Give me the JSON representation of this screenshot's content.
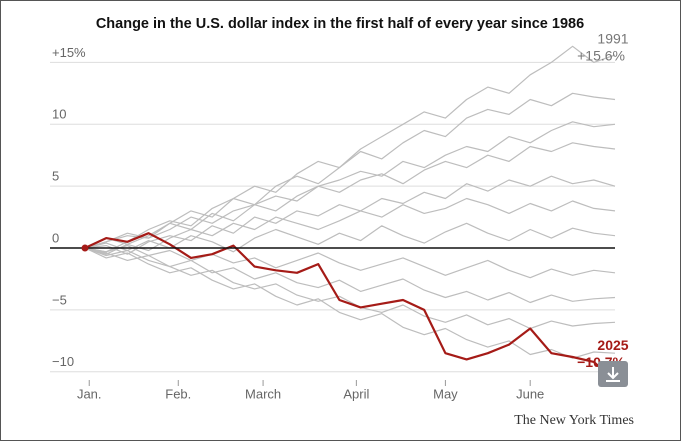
{
  "chart_data": {
    "type": "line",
    "title": "Change in the U.S. dollar index in the first half of every year since 1986",
    "source": "The New York Times",
    "x": [
      0,
      1,
      2,
      3,
      4,
      5,
      6,
      7,
      8,
      9,
      10,
      11,
      12,
      13,
      14,
      15,
      16,
      17,
      18,
      19,
      20,
      21,
      22,
      23,
      24,
      25
    ],
    "xlim": [
      0,
      25
    ],
    "xticks": [
      {
        "value": 0.2,
        "label": "Jan."
      },
      {
        "value": 4.4,
        "label": "Feb."
      },
      {
        "value": 8.4,
        "label": "March"
      },
      {
        "value": 12.8,
        "label": "April"
      },
      {
        "value": 17,
        "label": "May"
      },
      {
        "value": 21,
        "label": "June"
      }
    ],
    "ylim": [
      -10.5,
      16
    ],
    "yticks": [
      {
        "value": 15,
        "label": "+15%"
      },
      10,
      5,
      0,
      {
        "value": -5,
        "label": "−5"
      },
      {
        "value": -10,
        "label": "−10"
      }
    ],
    "grid": true,
    "series": [
      {
        "color": "#bdbdbd",
        "values": [
          0,
          0.5,
          1.2,
          0.8,
          1.5,
          2.5,
          2,
          3,
          3.5,
          4.2,
          3.8,
          5,
          5.5,
          6.2,
          5.8,
          7,
          6.5,
          7.5,
          8.2,
          7.8,
          9,
          8.5,
          9.5,
          10.2,
          9.8,
          10
        ]
      },
      {
        "color": "#bdbdbd",
        "values": [
          0,
          -0.3,
          0.5,
          1.5,
          2.2,
          1.8,
          3.2,
          4,
          3.5,
          5,
          5.8,
          5.2,
          6.5,
          7.8,
          7.2,
          8.5,
          9.5,
          9,
          10.5,
          11.2,
          10.8,
          12,
          11.5,
          12.5,
          12.2,
          12
        ]
      },
      {
        "color": "#bdbdbd",
        "values": [
          0,
          0.8,
          0.3,
          1,
          2,
          1.5,
          2.8,
          2.2,
          3.5,
          3,
          4.2,
          5,
          4.5,
          5.5,
          6,
          5.2,
          6.3,
          7,
          6.5,
          7.5,
          7,
          8.2,
          7.8,
          8.5,
          8.2,
          8
        ]
      },
      {
        "color": "#bdbdbd",
        "values": [
          0,
          0.2,
          -0.5,
          0.5,
          1,
          0.6,
          1.8,
          1.2,
          2.5,
          2,
          3,
          2.6,
          3.5,
          3,
          4,
          3.6,
          4.5,
          4,
          5.2,
          4.6,
          5.5,
          5,
          5.8,
          5.2,
          5.5,
          5
        ]
      },
      {
        "color": "#bdbdbd",
        "values": [
          0,
          -0.5,
          0.3,
          -0.2,
          0.8,
          1.5,
          1,
          2,
          1.5,
          2.5,
          2,
          1.5,
          2.2,
          3,
          2.5,
          3.5,
          2.8,
          3.2,
          4,
          3.5,
          2.8,
          3.6,
          3,
          3.8,
          3.2,
          3
        ]
      },
      {
        "color": "#bdbdbd",
        "values": [
          0,
          0.4,
          -0.2,
          0.6,
          0,
          1,
          0.5,
          -0.3,
          0.8,
          1.5,
          0.9,
          0.3,
          1.2,
          0.6,
          1.8,
          1,
          0.4,
          1.3,
          2,
          1.2,
          0.6,
          1.5,
          0.8,
          1.6,
          1.2,
          1
        ]
      },
      {
        "color": "#bdbdbd",
        "values": [
          0,
          -0.3,
          0.2,
          -0.6,
          -0.2,
          -1,
          -0.5,
          -1.2,
          -0.8,
          -1.6,
          -1,
          -0.4,
          -1.2,
          -1.8,
          -1.3,
          -0.8,
          -1.5,
          -2.2,
          -1.6,
          -1,
          -1.8,
          -2.4,
          -1.7,
          -2.2,
          -1.8,
          -2
        ]
      },
      {
        "color": "#bdbdbd",
        "values": [
          0,
          -0.6,
          -0.2,
          -1,
          -1.5,
          -1,
          -2,
          -1.6,
          -2.5,
          -2,
          -2.8,
          -3.2,
          -2.6,
          -3.5,
          -3,
          -2.5,
          -3.4,
          -4,
          -3.5,
          -4.2,
          -3.6,
          -4.4,
          -3.8,
          -4.3,
          -4.1,
          -4
        ]
      },
      {
        "color": "#bdbdbd",
        "values": [
          0,
          -0.4,
          -1,
          -0.6,
          -1.5,
          -2.2,
          -1.8,
          -2.8,
          -3.3,
          -2.9,
          -3.8,
          -4.3,
          -3.9,
          -4.8,
          -5.2,
          -4.6,
          -5.5,
          -6,
          -5.4,
          -6.2,
          -5.7,
          -6.5,
          -5.9,
          -6.3,
          -6.1,
          -6
        ]
      },
      {
        "color": "#bdbdbd",
        "values": [
          0,
          -0.8,
          -0.4,
          -1.3,
          -2,
          -1.6,
          -2.6,
          -3.3,
          -2.9,
          -3.9,
          -4.6,
          -4.1,
          -5.2,
          -5.8,
          -5.3,
          -6.4,
          -7,
          -6.5,
          -7.4,
          -8,
          -7.5,
          -8.6,
          -8.2,
          -8.9,
          -8.4,
          -8.5
        ]
      },
      {
        "name": "1991",
        "color": "#bdbdbd",
        "values": [
          0,
          0.5,
          1,
          0.8,
          2,
          3,
          2.5,
          4,
          5,
          4.5,
          6,
          7,
          6.5,
          8,
          9,
          10,
          11,
          10.5,
          12,
          13,
          12.5,
          14,
          15,
          16.3,
          15,
          15.6
        ],
        "value_labels": [
          null,
          null,
          null,
          null,
          null,
          null,
          null,
          null,
          null,
          null,
          null,
          null,
          null,
          null,
          null,
          null,
          null,
          null,
          null,
          null,
          null,
          null,
          null,
          null,
          null,
          "+15.6%"
        ]
      },
      {
        "name": "2025",
        "color": "#a51b17",
        "values": [
          0,
          0.8,
          0.5,
          1.2,
          0.3,
          -0.8,
          -0.5,
          0.2,
          -1.5,
          -1.8,
          -2,
          -1.3,
          -4.2,
          -4.8,
          -4.5,
          -4.2,
          -5,
          -8.5,
          -9,
          -8.5,
          -7.8,
          -6.5,
          -8.5,
          -8.8,
          -9.2,
          -10.7
        ],
        "value_labels": [
          null,
          null,
          null,
          null,
          null,
          null,
          null,
          null,
          null,
          null,
          null,
          null,
          null,
          null,
          null,
          null,
          null,
          null,
          null,
          null,
          null,
          null,
          null,
          null,
          null,
          "−10.7%"
        ]
      }
    ]
  }
}
